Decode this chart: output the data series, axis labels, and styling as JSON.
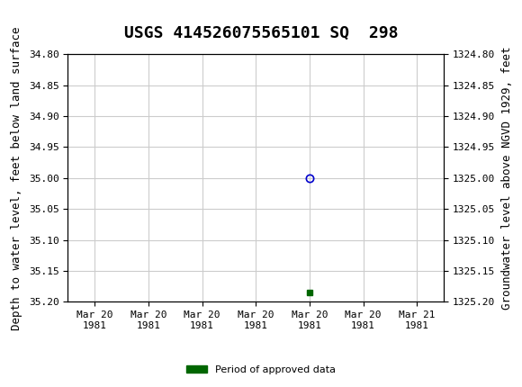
{
  "title": "USGS 414526075565101 SQ  298",
  "ylabel_left": "Depth to water level, feet below land surface",
  "ylabel_right": "Groundwater level above NGVD 1929, feet",
  "ylim_left": [
    34.8,
    35.2
  ],
  "ylim_right": [
    1324.8,
    1325.2
  ],
  "y_ticks_left": [
    34.8,
    34.85,
    34.9,
    34.95,
    35.0,
    35.05,
    35.1,
    35.15,
    35.2
  ],
  "y_ticks_right": [
    1324.8,
    1324.85,
    1324.9,
    1324.95,
    1325.0,
    1325.05,
    1325.1,
    1325.15,
    1325.2
  ],
  "data_point_x": 4.0,
  "data_point_y": 35.0,
  "green_marker_x": 4.0,
  "green_marker_y": 35.185,
  "x_tick_labels": [
    "Mar 20\n1981",
    "Mar 20\n1981",
    "Mar 20\n1981",
    "Mar 20\n1981",
    "Mar 20\n1981",
    "Mar 20\n1981",
    "Mar 21\n1981"
  ],
  "x_tick_positions": [
    0,
    1,
    2,
    3,
    4,
    5,
    6
  ],
  "xlim": [
    -0.5,
    6.5
  ],
  "circle_color": "#0000cc",
  "green_color": "#006600",
  "background_color": "#ffffff",
  "header_color": "#1a6e3c",
  "grid_color": "#cccccc",
  "legend_label": "Period of approved data",
  "title_fontsize": 13,
  "axis_fontsize": 9,
  "tick_fontsize": 8
}
